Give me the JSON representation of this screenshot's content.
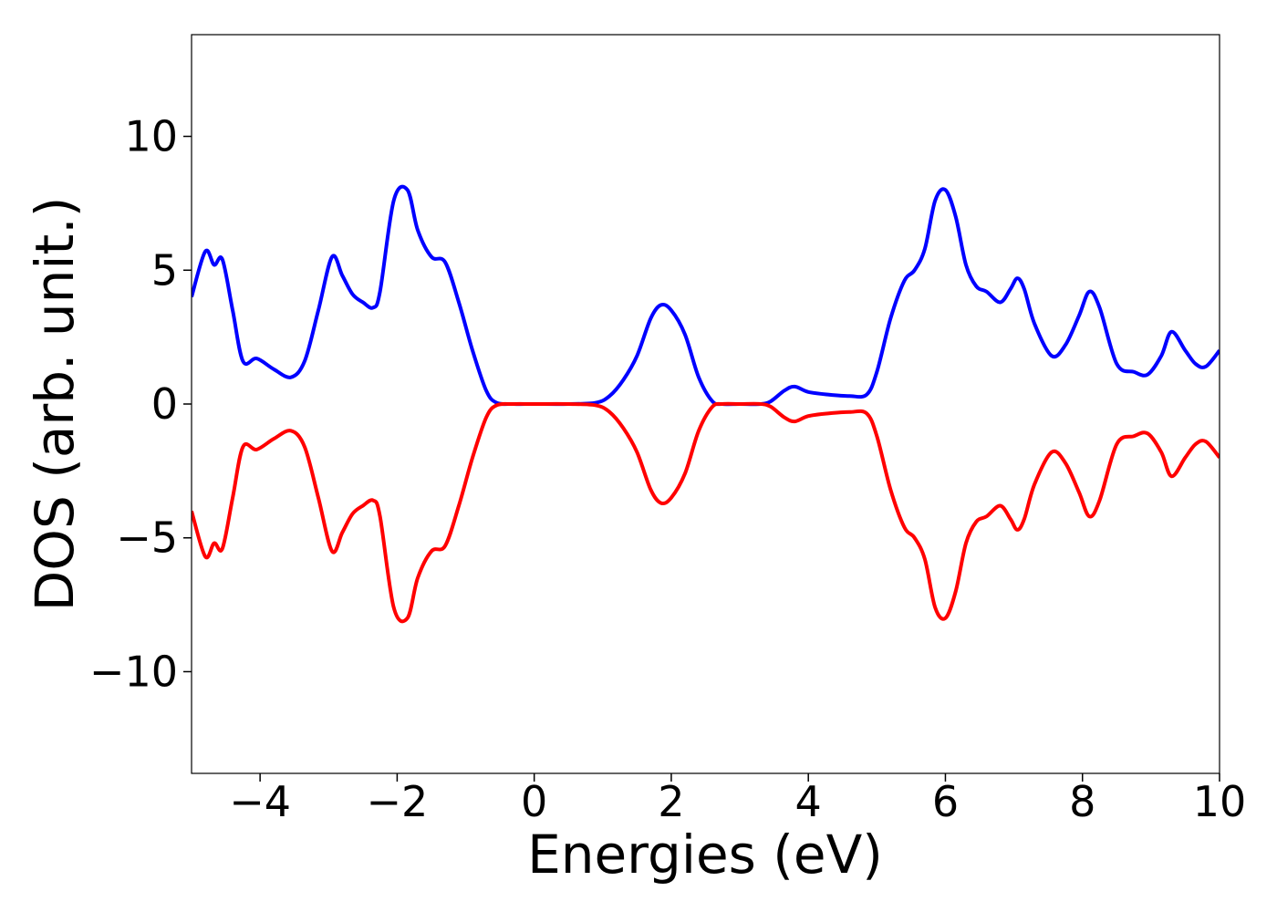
{
  "chart_data": {
    "type": "line",
    "title": "",
    "xlabel": "Energies (eV)",
    "ylabel": "DOS (arb. unit.)",
    "xlim": [
      -5,
      10
    ],
    "ylim": [
      -13.8,
      13.8
    ],
    "xticks": [
      -4,
      -2,
      0,
      2,
      4,
      6,
      8,
      10
    ],
    "yticks": [
      -10,
      -5,
      0,
      5,
      10
    ],
    "xtick_labels": [
      "−4",
      "−2",
      "0",
      "2",
      "4",
      "6",
      "8",
      "10"
    ],
    "ytick_labels": [
      "−10",
      "−5",
      "0",
      "5",
      "10"
    ],
    "grid": false,
    "legend": "none",
    "series": [
      {
        "color": "#0000ff",
        "x": [
          -5.0,
          -4.8,
          -4.67,
          -4.55,
          -4.4,
          -4.25,
          -4.05,
          -3.8,
          -3.55,
          -3.35,
          -3.15,
          -2.95,
          -2.8,
          -2.65,
          -2.5,
          -2.35,
          -2.25,
          -2.05,
          -1.85,
          -1.7,
          -1.5,
          -1.3,
          -1.1,
          -0.9,
          -0.7,
          -0.55,
          -0.3,
          0.0,
          0.5,
          0.9,
          1.1,
          1.3,
          1.5,
          1.7,
          1.85,
          2.0,
          2.2,
          2.4,
          2.6,
          2.75,
          3.0,
          3.3,
          3.45,
          3.65,
          3.8,
          4.0,
          4.3,
          4.6,
          4.85,
          5.0,
          5.2,
          5.4,
          5.55,
          5.7,
          5.85,
          6.0,
          6.15,
          6.3,
          6.45,
          6.6,
          6.8,
          6.95,
          7.05,
          7.15,
          7.3,
          7.55,
          7.75,
          7.95,
          8.1,
          8.25,
          8.5,
          8.75,
          8.95,
          9.15,
          9.3,
          9.5,
          9.65,
          9.8,
          10.0
        ],
        "y": [
          4.0,
          5.7,
          5.2,
          5.4,
          3.5,
          1.6,
          1.7,
          1.3,
          1.0,
          1.6,
          3.5,
          5.5,
          4.8,
          4.1,
          3.8,
          3.6,
          4.2,
          7.6,
          8.0,
          6.5,
          5.5,
          5.3,
          3.8,
          2.0,
          0.5,
          0.05,
          0.0,
          0.0,
          0.0,
          0.05,
          0.3,
          0.9,
          1.8,
          3.2,
          3.7,
          3.5,
          2.6,
          1.0,
          0.1,
          0.0,
          0.0,
          0.0,
          0.1,
          0.5,
          0.65,
          0.45,
          0.35,
          0.3,
          0.35,
          1.2,
          3.2,
          4.6,
          5.0,
          5.8,
          7.6,
          8.0,
          7.0,
          5.2,
          4.4,
          4.2,
          3.8,
          4.3,
          4.7,
          4.3,
          3.0,
          1.8,
          2.2,
          3.3,
          4.2,
          3.6,
          1.5,
          1.2,
          1.1,
          1.8,
          2.7,
          2.0,
          1.5,
          1.4,
          2.0
        ]
      },
      {
        "color": "#ff0000",
        "x": [
          -5.0,
          -4.8,
          -4.67,
          -4.55,
          -4.4,
          -4.25,
          -4.05,
          -3.8,
          -3.55,
          -3.35,
          -3.15,
          -2.95,
          -2.8,
          -2.65,
          -2.5,
          -2.35,
          -2.25,
          -2.05,
          -1.85,
          -1.7,
          -1.5,
          -1.3,
          -1.1,
          -0.9,
          -0.7,
          -0.55,
          -0.3,
          0.0,
          0.5,
          0.9,
          1.1,
          1.3,
          1.5,
          1.7,
          1.85,
          2.0,
          2.2,
          2.4,
          2.6,
          2.75,
          3.0,
          3.3,
          3.45,
          3.65,
          3.8,
          4.0,
          4.3,
          4.6,
          4.85,
          5.0,
          5.2,
          5.4,
          5.55,
          5.7,
          5.85,
          6.0,
          6.15,
          6.3,
          6.45,
          6.6,
          6.8,
          6.95,
          7.05,
          7.15,
          7.3,
          7.55,
          7.75,
          7.95,
          8.1,
          8.25,
          8.5,
          8.75,
          8.95,
          9.15,
          9.3,
          9.5,
          9.65,
          9.8,
          10.0
        ],
        "y": [
          -4.0,
          -5.7,
          -5.2,
          -5.4,
          -3.5,
          -1.6,
          -1.7,
          -1.3,
          -1.0,
          -1.6,
          -3.5,
          -5.5,
          -4.8,
          -4.1,
          -3.8,
          -3.6,
          -4.2,
          -7.6,
          -8.0,
          -6.5,
          -5.5,
          -5.3,
          -3.8,
          -2.0,
          -0.5,
          -0.05,
          0.0,
          0.0,
          0.0,
          -0.05,
          -0.3,
          -0.9,
          -1.8,
          -3.2,
          -3.7,
          -3.5,
          -2.6,
          -1.0,
          -0.1,
          0.0,
          0.0,
          0.0,
          -0.1,
          -0.5,
          -0.65,
          -0.45,
          -0.35,
          -0.3,
          -0.35,
          -1.2,
          -3.2,
          -4.6,
          -5.0,
          -5.8,
          -7.6,
          -8.0,
          -7.0,
          -5.2,
          -4.4,
          -4.2,
          -3.8,
          -4.3,
          -4.7,
          -4.3,
          -3.0,
          -1.8,
          -2.2,
          -3.3,
          -4.2,
          -3.6,
          -1.5,
          -1.2,
          -1.1,
          -1.8,
          -2.7,
          -2.0,
          -1.5,
          -1.4,
          -2.0
        ]
      }
    ]
  }
}
